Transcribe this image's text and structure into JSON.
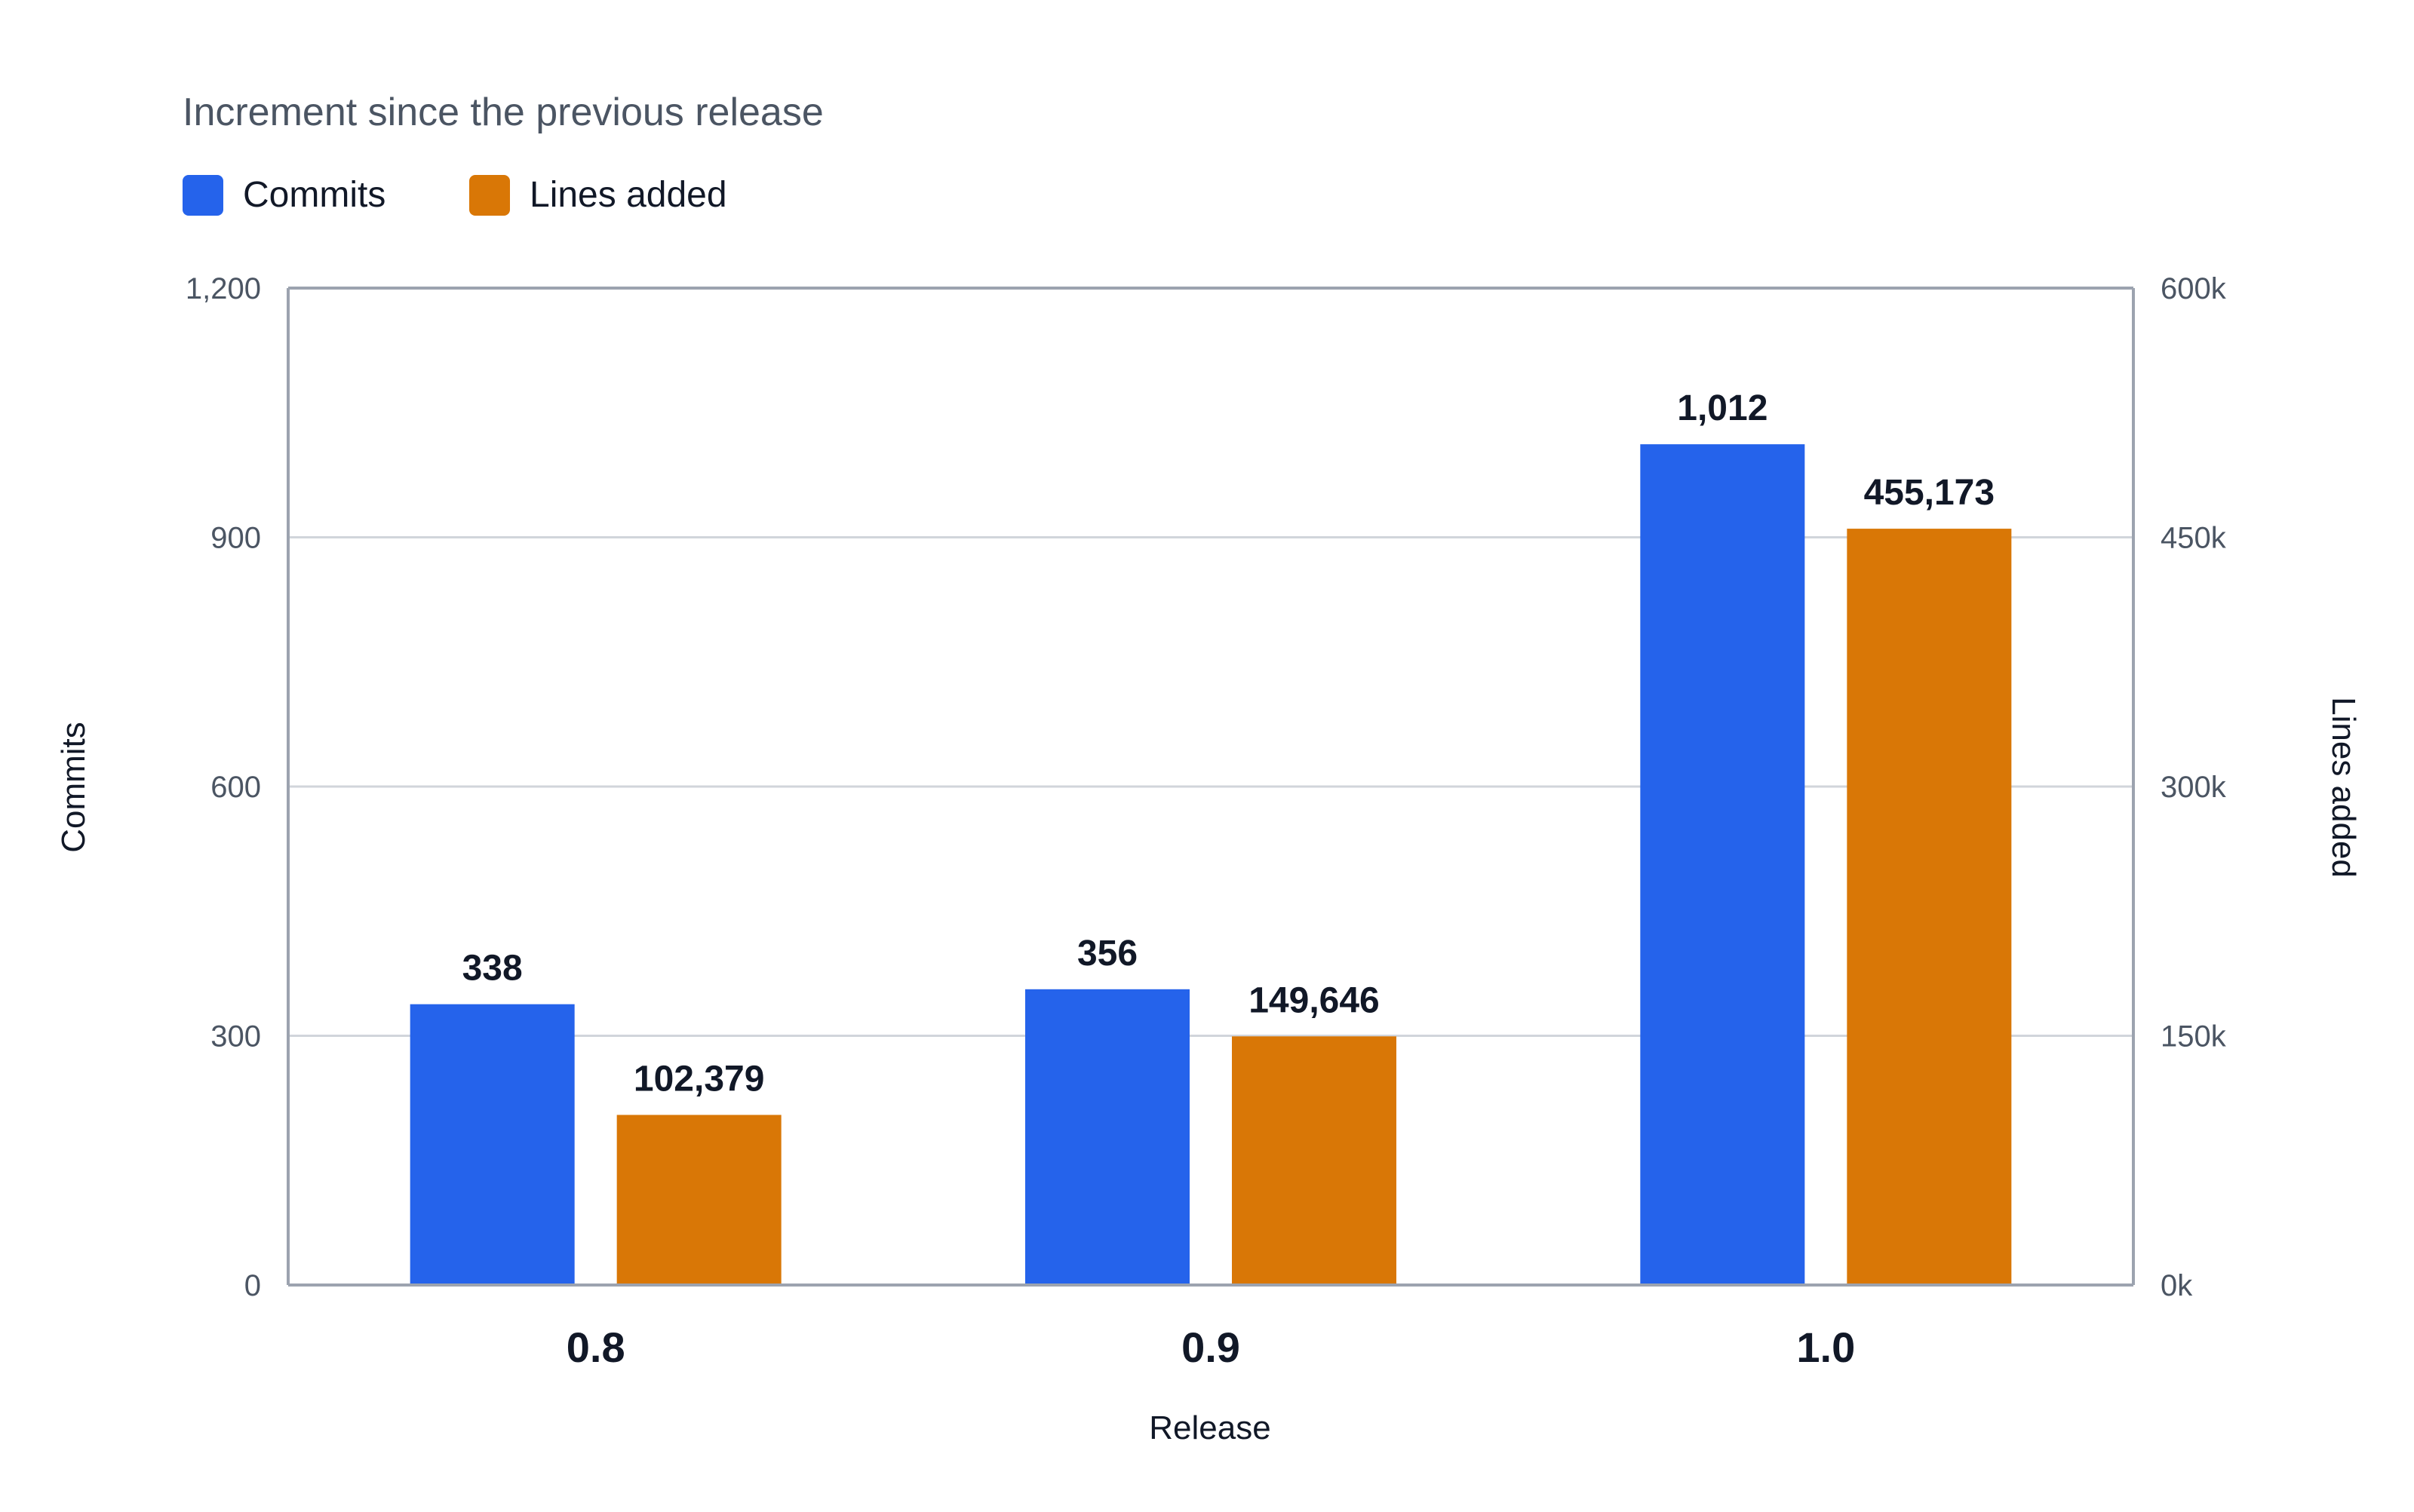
{
  "chart_data": {
    "type": "bar",
    "title": "",
    "subtitle": "Increment since the previous release",
    "xlabel": "Release",
    "ylabel": "Commits",
    "y2label": "Lines added",
    "categories": [
      "0.8",
      "0.9",
      "1.0"
    ],
    "series": [
      {
        "name": "Commits",
        "axis": "left",
        "color": "#2563eb",
        "values": [
          338,
          356,
          1012
        ],
        "value_labels": [
          "338",
          "356",
          "1,012"
        ]
      },
      {
        "name": "Lines added",
        "axis": "right",
        "color": "#d97706",
        "values": [
          102379,
          149646,
          455173
        ],
        "value_labels": [
          "102,379",
          "149,646",
          "455,173"
        ]
      }
    ],
    "ylim": [
      0,
      1200
    ],
    "y2lim": [
      0,
      600000
    ],
    "yticks": [
      0,
      300,
      600,
      900,
      1200
    ],
    "ytick_labels": [
      "0",
      "300",
      "600",
      "900",
      "1,200"
    ],
    "y2ticks": [
      0,
      150000,
      300000,
      450000,
      600000
    ],
    "y2tick_labels": [
      "0k",
      "150k",
      "300k",
      "450k",
      "600k"
    ],
    "grid": true,
    "legend_position": "top-left"
  }
}
